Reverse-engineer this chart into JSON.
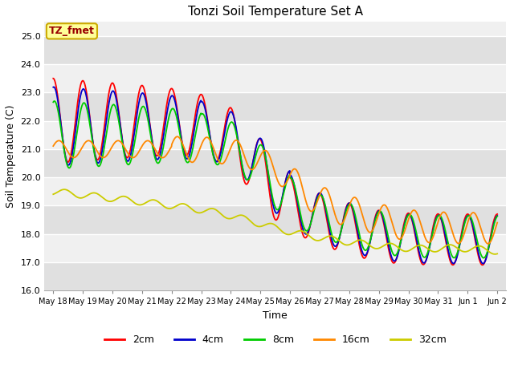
{
  "title": "Tonzi Soil Temperature Set A",
  "xlabel": "Time",
  "ylabel": "Soil Temperature (C)",
  "ylim": [
    16.0,
    25.5
  ],
  "yticks": [
    16.0,
    17.0,
    18.0,
    19.0,
    20.0,
    21.0,
    22.0,
    23.0,
    24.0,
    25.0
  ],
  "xtick_labels": [
    "May 18",
    "May 19",
    "May 20",
    "May 21",
    "May 22",
    "May 23",
    "May 24",
    "May 25",
    "May 26",
    "May 27",
    "May 28",
    "May 29",
    "May 30",
    "May 31",
    "Jun 1",
    "Jun 2"
  ],
  "legend_labels": [
    "2cm",
    "4cm",
    "8cm",
    "16cm",
    "32cm"
  ],
  "line_colors": [
    "#ff0000",
    "#0000cc",
    "#00cc00",
    "#ff8800",
    "#cccc00"
  ],
  "annotation_text": "TZ_fmet",
  "annotation_bg": "#ffff99",
  "annotation_border": "#ccaa00",
  "plot_bg_light": "#f0f0f0",
  "plot_bg_dark": "#e0e0e0",
  "grid_color": "#ffffff",
  "fig_bg": "#ffffff",
  "title_fontsize": 11,
  "label_fontsize": 9,
  "tick_fontsize": 8,
  "legend_fontsize": 9
}
